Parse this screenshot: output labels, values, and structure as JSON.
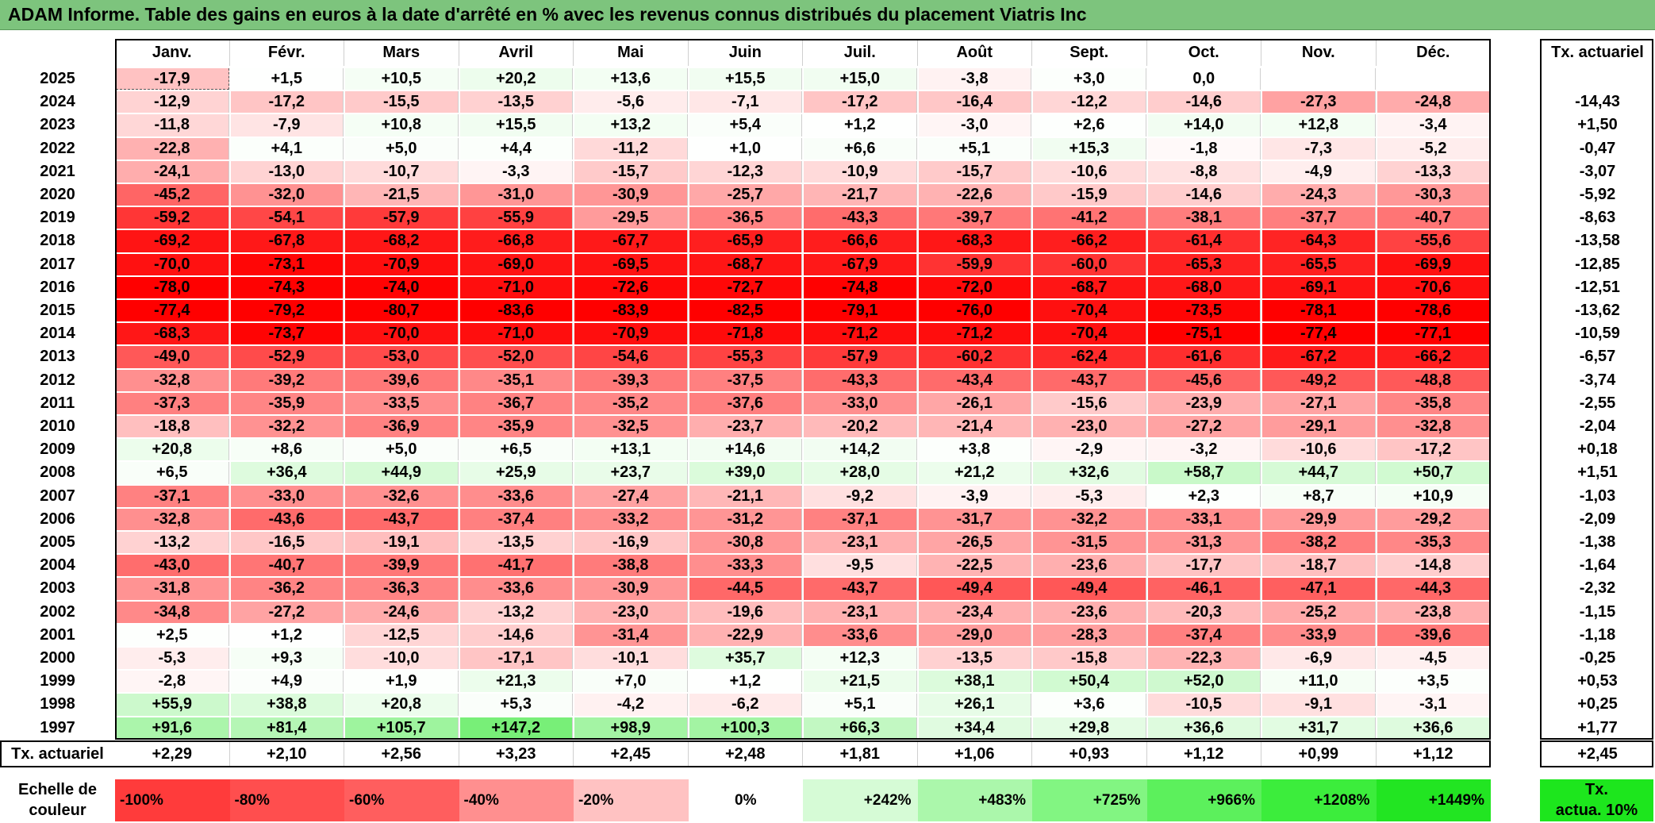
{
  "title": "ADAM Informe. Table des gains en euros à la date d'arrêté en % avec les revenus connus distribués du placement Viatris Inc",
  "chart_data": {
    "type": "table",
    "months": [
      "Janv.",
      "Févr.",
      "Mars",
      "Avril",
      "Mai",
      "Juin",
      "Juil.",
      "Août",
      "Sept.",
      "Oct.",
      "Nov.",
      "Déc."
    ],
    "annual_header": "Tx. actuariel",
    "rows": [
      {
        "year": "2025",
        "values": [
          "-17,9",
          "+1,5",
          "+10,5",
          "+20,2",
          "+13,6",
          "+15,5",
          "+15,0",
          "-3,8",
          "+3,0",
          "0,0",
          "",
          ""
        ],
        "annual": ""
      },
      {
        "year": "2024",
        "values": [
          "-12,9",
          "-17,2",
          "-15,5",
          "-13,5",
          "-5,6",
          "-7,1",
          "-17,2",
          "-16,4",
          "-12,2",
          "-14,6",
          "-27,3",
          "-24,8"
        ],
        "annual": "-14,43"
      },
      {
        "year": "2023",
        "values": [
          "-11,8",
          "-7,9",
          "+10,8",
          "+15,5",
          "+13,2",
          "+5,4",
          "+1,2",
          "-3,0",
          "+2,6",
          "+14,0",
          "+12,8",
          "-3,4"
        ],
        "annual": "+1,50"
      },
      {
        "year": "2022",
        "values": [
          "-22,8",
          "+4,1",
          "+5,0",
          "+4,4",
          "-11,2",
          "+1,0",
          "+6,6",
          "+5,1",
          "+15,3",
          "-1,8",
          "-7,3",
          "-5,2"
        ],
        "annual": "-0,47"
      },
      {
        "year": "2021",
        "values": [
          "-24,1",
          "-13,0",
          "-10,7",
          "-3,3",
          "-15,7",
          "-12,3",
          "-10,9",
          "-15,7",
          "-10,6",
          "-8,8",
          "-4,9",
          "-13,3"
        ],
        "annual": "-3,07"
      },
      {
        "year": "2020",
        "values": [
          "-45,2",
          "-32,0",
          "-21,5",
          "-31,0",
          "-30,9",
          "-25,7",
          "-21,7",
          "-22,6",
          "-15,9",
          "-14,6",
          "-24,3",
          "-30,3"
        ],
        "annual": "-5,92"
      },
      {
        "year": "2019",
        "values": [
          "-59,2",
          "-54,1",
          "-57,9",
          "-55,9",
          "-29,5",
          "-36,5",
          "-43,3",
          "-39,7",
          "-41,2",
          "-38,1",
          "-37,7",
          "-40,7"
        ],
        "annual": "-8,63"
      },
      {
        "year": "2018",
        "values": [
          "-69,2",
          "-67,8",
          "-68,2",
          "-66,8",
          "-67,7",
          "-65,9",
          "-66,6",
          "-68,3",
          "-66,2",
          "-61,4",
          "-64,3",
          "-55,6"
        ],
        "annual": "-13,58"
      },
      {
        "year": "2017",
        "values": [
          "-70,0",
          "-73,1",
          "-70,9",
          "-69,0",
          "-69,5",
          "-68,7",
          "-67,9",
          "-59,9",
          "-60,0",
          "-65,3",
          "-65,5",
          "-69,9"
        ],
        "annual": "-12,85"
      },
      {
        "year": "2016",
        "values": [
          "-78,0",
          "-74,3",
          "-74,0",
          "-71,0",
          "-72,6",
          "-72,7",
          "-74,8",
          "-72,0",
          "-68,7",
          "-68,0",
          "-69,1",
          "-70,6"
        ],
        "annual": "-12,51"
      },
      {
        "year": "2015",
        "values": [
          "-77,4",
          "-79,2",
          "-80,7",
          "-83,6",
          "-83,9",
          "-82,5",
          "-79,1",
          "-76,0",
          "-70,4",
          "-73,5",
          "-78,1",
          "-78,6"
        ],
        "annual": "-13,62"
      },
      {
        "year": "2014",
        "values": [
          "-68,3",
          "-73,7",
          "-70,0",
          "-71,0",
          "-70,9",
          "-71,8",
          "-71,2",
          "-71,2",
          "-70,4",
          "-75,1",
          "-77,4",
          "-77,1"
        ],
        "annual": "-10,59"
      },
      {
        "year": "2013",
        "values": [
          "-49,0",
          "-52,9",
          "-53,0",
          "-52,0",
          "-54,6",
          "-55,3",
          "-57,9",
          "-60,2",
          "-62,4",
          "-61,6",
          "-67,2",
          "-66,2"
        ],
        "annual": "-6,57"
      },
      {
        "year": "2012",
        "values": [
          "-32,8",
          "-39,2",
          "-39,6",
          "-35,1",
          "-39,3",
          "-37,5",
          "-43,3",
          "-43,4",
          "-43,7",
          "-45,6",
          "-49,2",
          "-48,8"
        ],
        "annual": "-3,74"
      },
      {
        "year": "2011",
        "values": [
          "-37,3",
          "-35,9",
          "-33,5",
          "-36,7",
          "-35,2",
          "-37,6",
          "-33,0",
          "-26,1",
          "-15,6",
          "-23,9",
          "-27,1",
          "-35,8"
        ],
        "annual": "-2,55"
      },
      {
        "year": "2010",
        "values": [
          "-18,8",
          "-32,2",
          "-36,9",
          "-35,9",
          "-32,5",
          "-23,7",
          "-20,2",
          "-21,4",
          "-23,0",
          "-27,2",
          "-29,1",
          "-32,8"
        ],
        "annual": "-2,04"
      },
      {
        "year": "2009",
        "values": [
          "+20,8",
          "+8,6",
          "+5,0",
          "+6,5",
          "+13,1",
          "+14,6",
          "+14,2",
          "+3,8",
          "-2,9",
          "-3,2",
          "-10,6",
          "-17,2"
        ],
        "annual": "+0,18"
      },
      {
        "year": "2008",
        "values": [
          "+6,5",
          "+36,4",
          "+44,9",
          "+25,9",
          "+23,7",
          "+39,0",
          "+28,0",
          "+21,2",
          "+32,6",
          "+58,7",
          "+44,7",
          "+50,7"
        ],
        "annual": "+1,51"
      },
      {
        "year": "2007",
        "values": [
          "-37,1",
          "-33,0",
          "-32,6",
          "-33,6",
          "-27,4",
          "-21,1",
          "-9,2",
          "-3,9",
          "-5,3",
          "+2,3",
          "+8,7",
          "+10,9"
        ],
        "annual": "-1,03"
      },
      {
        "year": "2006",
        "values": [
          "-32,8",
          "-43,6",
          "-43,7",
          "-37,4",
          "-33,2",
          "-31,2",
          "-37,1",
          "-31,7",
          "-32,2",
          "-33,1",
          "-29,9",
          "-29,2"
        ],
        "annual": "-2,09"
      },
      {
        "year": "2005",
        "values": [
          "-13,2",
          "-16,5",
          "-19,1",
          "-13,5",
          "-16,9",
          "-30,8",
          "-23,1",
          "-26,5",
          "-31,5",
          "-31,3",
          "-38,2",
          "-35,3"
        ],
        "annual": "-1,38"
      },
      {
        "year": "2004",
        "values": [
          "-43,0",
          "-40,7",
          "-39,9",
          "-41,7",
          "-38,8",
          "-33,3",
          "-9,5",
          "-22,5",
          "-23,6",
          "-17,7",
          "-18,7",
          "-14,8"
        ],
        "annual": "-1,64"
      },
      {
        "year": "2003",
        "values": [
          "-31,8",
          "-36,2",
          "-36,3",
          "-33,6",
          "-30,9",
          "-44,5",
          "-43,7",
          "-49,4",
          "-49,4",
          "-46,1",
          "-47,1",
          "-44,3"
        ],
        "annual": "-2,32"
      },
      {
        "year": "2002",
        "values": [
          "-34,8",
          "-27,2",
          "-24,6",
          "-13,2",
          "-23,0",
          "-19,6",
          "-23,1",
          "-23,4",
          "-23,6",
          "-20,3",
          "-25,2",
          "-23,8"
        ],
        "annual": "-1,15"
      },
      {
        "year": "2001",
        "values": [
          "+2,5",
          "+1,2",
          "-12,5",
          "-14,6",
          "-31,4",
          "-22,9",
          "-33,6",
          "-29,0",
          "-28,3",
          "-37,4",
          "-33,9",
          "-39,6"
        ],
        "annual": "-1,18"
      },
      {
        "year": "2000",
        "values": [
          "-5,3",
          "+9,3",
          "-10,0",
          "-17,1",
          "-10,1",
          "+35,7",
          "+12,3",
          "-13,5",
          "-15,8",
          "-22,3",
          "-6,9",
          "-4,5"
        ],
        "annual": "-0,25"
      },
      {
        "year": "1999",
        "values": [
          "-2,8",
          "+4,9",
          "+1,9",
          "+21,3",
          "+7,0",
          "+1,2",
          "+21,5",
          "+38,1",
          "+50,4",
          "+52,0",
          "+11,0",
          "+3,5"
        ],
        "annual": "+0,53"
      },
      {
        "year": "1998",
        "values": [
          "+55,9",
          "+38,8",
          "+20,8",
          "+5,3",
          "-4,2",
          "-6,2",
          "+5,1",
          "+26,1",
          "+3,6",
          "-10,5",
          "-9,1",
          "-3,1"
        ],
        "annual": "+0,25"
      },
      {
        "year": "1997",
        "values": [
          "+91,6",
          "+81,4",
          "+105,7",
          "+147,2",
          "+98,9",
          "+100,3",
          "+66,3",
          "+34,4",
          "+29,8",
          "+36,6",
          "+31,7",
          "+36,6"
        ],
        "annual": "+1,77"
      }
    ],
    "summary_row": {
      "label": "Tx. actuariel",
      "values": [
        "+2,29",
        "+2,10",
        "+2,56",
        "+3,23",
        "+2,45",
        "+2,48",
        "+1,81",
        "+1,06",
        "+0,93",
        "+1,12",
        "+0,99",
        "+1,12"
      ],
      "annual": "+2,45"
    },
    "color_scale": {
      "label_line1": "Echelle de",
      "label_line2": "couleur",
      "steps": [
        {
          "label": "-100%",
          "color": "#ff3b3b",
          "align": "left"
        },
        {
          "label": "-80%",
          "color": "#ff4e4e",
          "align": "left"
        },
        {
          "label": "-60%",
          "color": "#ff5e5e",
          "align": "left"
        },
        {
          "label": "-40%",
          "color": "#ff8f8f",
          "align": "left"
        },
        {
          "label": "-20%",
          "color": "#ffc2c2",
          "align": "left"
        },
        {
          "label": "0%",
          "color": "#ffffff",
          "align": "center"
        },
        {
          "label": "+242%",
          "color": "#d6fbd6",
          "align": "right"
        },
        {
          "label": "+483%",
          "color": "#abf7ab",
          "align": "right"
        },
        {
          "label": "+725%",
          "color": "#82f582",
          "align": "right"
        },
        {
          "label": "+966%",
          "color": "#5cf05c",
          "align": "right"
        },
        {
          "label": "+1208%",
          "color": "#3ced3c",
          "align": "right"
        },
        {
          "label": "+1449%",
          "color": "#22e522",
          "align": "right"
        }
      ],
      "annual_label_line1": "Tx.",
      "annual_label_line2": "actua. 10%",
      "annual_color": "#1de61d"
    }
  }
}
